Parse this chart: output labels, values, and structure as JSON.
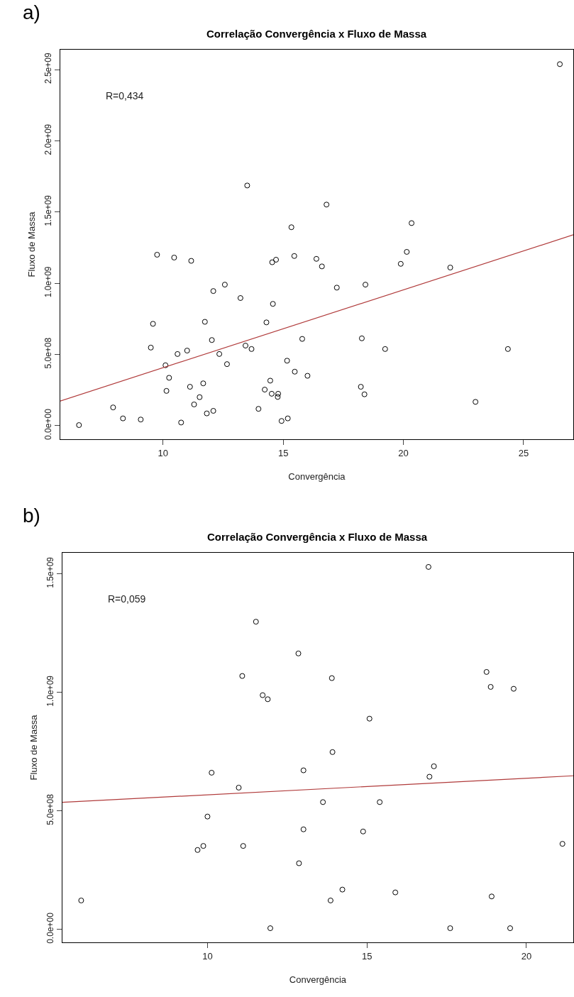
{
  "chart_data": [
    {
      "type": "scatter",
      "title": "Correlação Convergência x Fluxo de Massa",
      "xlabel": "Convergência",
      "ylabel": "Fluxo de Massa",
      "annotations": [
        "a)",
        "R=0,434"
      ],
      "xlim": [
        5.72,
        27.07
      ],
      "ylim": [
        -96000000.0,
        2640000000.0
      ],
      "xticks": [
        10,
        15,
        20,
        25
      ],
      "yticks": [
        {
          "value": 0,
          "label": "0.0e+00"
        },
        {
          "value": 500000000.0,
          "label": "5.0e+08"
        },
        {
          "value": 1000000000.0,
          "label": "1.0e+09"
        },
        {
          "value": 1500000000.0,
          "label": "1.5e+09"
        },
        {
          "value": 2000000000.0,
          "label": "2.0e+09"
        },
        {
          "value": 2500000000.0,
          "label": "2.5e+09"
        }
      ],
      "series": [
        {
          "marker": "circle",
          "color": "#000000",
          "x": [
            6.5,
            7.92,
            8.33,
            9.07,
            9.49,
            9.58,
            9.75,
            10.1,
            10.14,
            10.25,
            10.46,
            10.6,
            10.75,
            11.0,
            11.12,
            11.17,
            11.29,
            11.52,
            11.67,
            11.74,
            11.82,
            12.03,
            12.09,
            12.09,
            12.34,
            12.57,
            12.66,
            13.22,
            13.43,
            13.5,
            13.68,
            13.97,
            14.23,
            14.3,
            14.46,
            14.52,
            14.54,
            14.57,
            14.7,
            14.77,
            14.79,
            14.93,
            15.16,
            15.19,
            15.34,
            15.46,
            15.48,
            15.79,
            16.01,
            16.38,
            16.61,
            16.8,
            17.23,
            18.23,
            18.27,
            18.38,
            18.42,
            19.24,
            19.89,
            20.14,
            20.34,
            21.95,
            23.0,
            24.35,
            26.51
          ],
          "values": [
            4000000.0,
            128000000.0,
            51000000.0,
            43000000.0,
            548000000.0,
            715000000.0,
            1200000000.0,
            424000000.0,
            244000000.0,
            336000000.0,
            1180000000.0,
            503000000.0,
            22000000.0,
            527000000.0,
            273000000.0,
            1157000000.0,
            149000000.0,
            200000000.0,
            297000000.0,
            729000000.0,
            86000000.0,
            601000000.0,
            104000000.0,
            945000000.0,
            503000000.0,
            990000000.0,
            432000000.0,
            896000000.0,
            562000000.0,
            1686000000.0,
            538000000.0,
            118000000.0,
            253000000.0,
            725000000.0,
            316000000.0,
            224000000.0,
            1147000000.0,
            855000000.0,
            1165000000.0,
            202000000.0,
            224000000.0,
            33000000.0,
            456000000.0,
            51000000.0,
            1393000000.0,
            1191000000.0,
            379000000.0,
            609000000.0,
            350000000.0,
            1171000000.0,
            1118000000.0,
            1552000000.0,
            969000000.0,
            273000000.0,
            613000000.0,
            220000000.0,
            990000000.0,
            538000000.0,
            1136000000.0,
            1220000000.0,
            1422000000.0,
            1110000000.0,
            167000000.0,
            538000000.0,
            2538000000.0
          ]
        },
        {
          "type": "line",
          "color": "#b03a3a",
          "x": [
            5.72,
            27.07
          ],
          "values": [
            173000000.0,
            1340000000.0
          ]
        }
      ]
    },
    {
      "type": "scatter",
      "title": "Correlação Convergência x Fluxo de Massa",
      "xlabel": "Convergência",
      "ylabel": "Fluxo de Massa",
      "annotations": [
        "b)",
        "R=0,059"
      ],
      "xlim": [
        5.45,
        21.47
      ],
      "ylim": [
        -55000000.0,
        1589000000.0
      ],
      "xticks": [
        10,
        15,
        20
      ],
      "yticks": [
        {
          "value": 0,
          "label": "0.0e+00"
        },
        {
          "value": 500000000.0,
          "label": "5.0e+08"
        },
        {
          "value": 1000000000.0,
          "label": "1.0e+09"
        },
        {
          "value": 1500000000.0,
          "label": "1.5e+09"
        }
      ],
      "series": [
        {
          "marker": "circle",
          "color": "#000000",
          "x": [
            6.04,
            9.69,
            9.87,
            10.0,
            10.13,
            10.98,
            11.12,
            11.09,
            11.52,
            11.73,
            11.89,
            11.97,
            12.85,
            12.87,
            13.01,
            13.01,
            13.62,
            13.9,
            13.92,
            13.86,
            14.23,
            14.88,
            15.08,
            15.4,
            15.89,
            16.93,
            16.96,
            17.1,
            17.61,
            18.75,
            18.88,
            18.91,
            19.49,
            19.6,
            21.13
          ],
          "values": [
            122000000.0,
            335000000.0,
            352000000.0,
            476000000.0,
            661000000.0,
            598000000.0,
            352000000.0,
            1069000000.0,
            1298000000.0,
            988000000.0,
            971000000.0,
            5000000.0,
            1164000000.0,
            279000000.0,
            671000000.0,
            422000000.0,
            537000000.0,
            1060000000.0,
            748000000.0,
            122000000.0,
            168000000.0,
            413000000.0,
            889000000.0,
            537000000.0,
            156000000.0,
            1529000000.0,
            644000000.0,
            688000000.0,
            5000000.0,
            1086000000.0,
            1023000000.0,
            139000000.0,
            5000000.0,
            1015000000.0,
            361000000.0
          ]
        },
        {
          "type": "line",
          "color": "#b03a3a",
          "x": [
            5.45,
            21.47
          ],
          "values": [
            536000000.0,
            648000000.0
          ]
        }
      ]
    }
  ]
}
